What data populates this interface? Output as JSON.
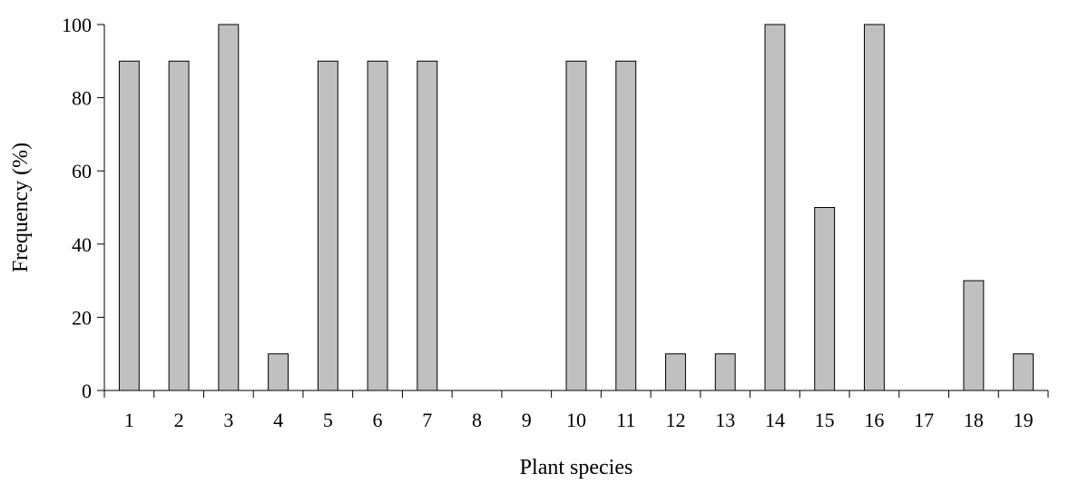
{
  "chart_data": {
    "type": "bar",
    "categories": [
      "1",
      "2",
      "3",
      "4",
      "5",
      "6",
      "7",
      "8",
      "9",
      "10",
      "11",
      "12",
      "13",
      "14",
      "15",
      "16",
      "17",
      "18",
      "19"
    ],
    "values": [
      90,
      90,
      100,
      10,
      90,
      90,
      90,
      0,
      0,
      90,
      90,
      10,
      10,
      100,
      50,
      100,
      0,
      30,
      10
    ],
    "title": "",
    "xlabel": "Plant species",
    "ylabel": "Frequency (%)",
    "ylim": [
      0,
      100
    ],
    "yticks": [
      "0",
      "20",
      "40",
      "60",
      "80",
      "100"
    ],
    "grid": false,
    "legend": "none",
    "bar_color": "#c0c0c0",
    "edge_color": "#000000"
  }
}
